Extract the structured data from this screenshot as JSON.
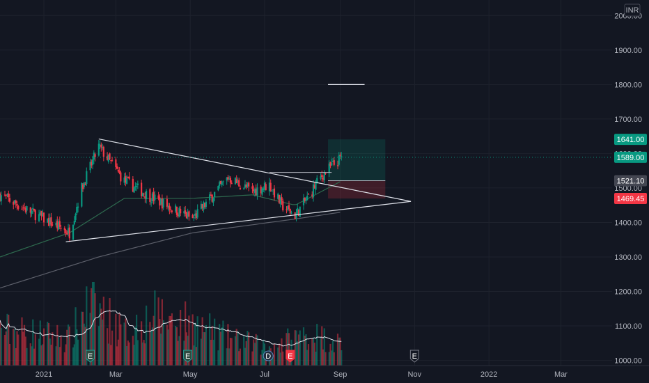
{
  "chart_data": {
    "type": "candlestick",
    "currency": "INR",
    "y_ticks": [
      1000,
      1100,
      1200,
      1300,
      1400,
      1500,
      1600,
      1700,
      1800,
      1900,
      2000
    ],
    "y_tick_labels": [
      "1000.00",
      "1100.00",
      "1200.00",
      "1300.00",
      "1400.00",
      "1500.00",
      "1600.00",
      "1700.00",
      "1800.00",
      "1900.00",
      "2000.00"
    ],
    "ylim": [
      985,
      2045
    ],
    "x_tick_labels": [
      "2021",
      "Mar",
      "May",
      "Jul",
      "Sep",
      "Nov",
      "2022",
      "Mar"
    ],
    "x_tick_dates": [
      "2021-01-01",
      "2021-03-01",
      "2021-05-01",
      "2021-07-01",
      "2021-09-01",
      "2021-11-01",
      "2022-01-01",
      "2022-03-01"
    ],
    "xlim": [
      "2020-11-26",
      "2022-04-12"
    ],
    "price_tags": [
      {
        "value": 1641.0,
        "label": "1641.00",
        "color": "#089981"
      },
      {
        "value": 1589.0,
        "label": "1589.00",
        "color": "#089981"
      },
      {
        "value": 1521.1,
        "label": "1521.10",
        "color": "#434651"
      },
      {
        "value": 1469.45,
        "label": "1469.45",
        "color": "#f23645"
      }
    ],
    "series": [
      {
        "kind": "ohlc",
        "dates": [
          "2020-11-26",
          "2021-01-01",
          "2021-01-22",
          "2021-02-01",
          "2021-02-08",
          "2021-02-15",
          "2021-03-08",
          "2021-04-01",
          "2021-05-03",
          "2021-06-01",
          "2021-06-21",
          "2021-07-05",
          "2021-07-15",
          "2021-07-26",
          "2021-08-05",
          "2021-08-12",
          "2021-08-18",
          "2021-08-24",
          "2021-08-31",
          "2021-09-02"
        ],
        "close": [
          1480,
          1410,
          1370,
          1500,
          1560,
          1620,
          1520,
          1470,
          1410,
          1530,
          1490,
          1510,
          1450,
          1420,
          1470,
          1510,
          1540,
          1560,
          1580,
          1589
        ]
      },
      {
        "kind": "volume",
        "dates": [
          "2020-11-26",
          "2021-01-22",
          "2021-02-08",
          "2021-03-08",
          "2021-04-01",
          "2021-05-03",
          "2021-06-01",
          "2021-07-05",
          "2021-08-05",
          "2021-09-02"
        ],
        "values": [
          8,
          6,
          14,
          7,
          11,
          9,
          6,
          4,
          7,
          5
        ]
      },
      {
        "kind": "ma50",
        "dates": [
          "2020-11-26",
          "2021-01-22",
          "2021-03-08",
          "2021-05-03",
          "2021-06-21",
          "2021-07-26",
          "2021-09-02"
        ],
        "values": [
          1300,
          1370,
          1470,
          1470,
          1480,
          1450,
          1520
        ]
      },
      {
        "kind": "ma200",
        "dates": [
          "2020-11-26",
          "2021-02-15",
          "2021-05-03",
          "2021-07-26",
          "2021-09-02"
        ],
        "values": [
          1210,
          1300,
          1370,
          1410,
          1430
        ]
      }
    ],
    "drawings": {
      "triangle_upper": [
        {
          "date": "2021-02-15",
          "price": 1642
        },
        {
          "date": "2021-10-29",
          "price": 1461
        }
      ],
      "triangle_lower": [
        {
          "date": "2021-01-19",
          "price": 1344
        },
        {
          "date": "2021-10-29",
          "price": 1461
        }
      ],
      "target_box_top": 1641.0,
      "entry": 1521.1,
      "stop": 1469.45,
      "box_dates": [
        "2021-08-22",
        "2021-10-08"
      ]
    },
    "event_markers": [
      {
        "date": "2021-02-08",
        "letter": "E",
        "kind": "earnings"
      },
      {
        "date": "2021-04-29",
        "letter": "E",
        "kind": "earnings"
      },
      {
        "date": "2021-07-04",
        "letter": "D",
        "kind": "dividend"
      },
      {
        "date": "2021-07-22",
        "letter": "E",
        "kind": "earnings-red"
      },
      {
        "date": "2021-11-01",
        "letter": "E",
        "kind": "earnings-future"
      }
    ]
  }
}
